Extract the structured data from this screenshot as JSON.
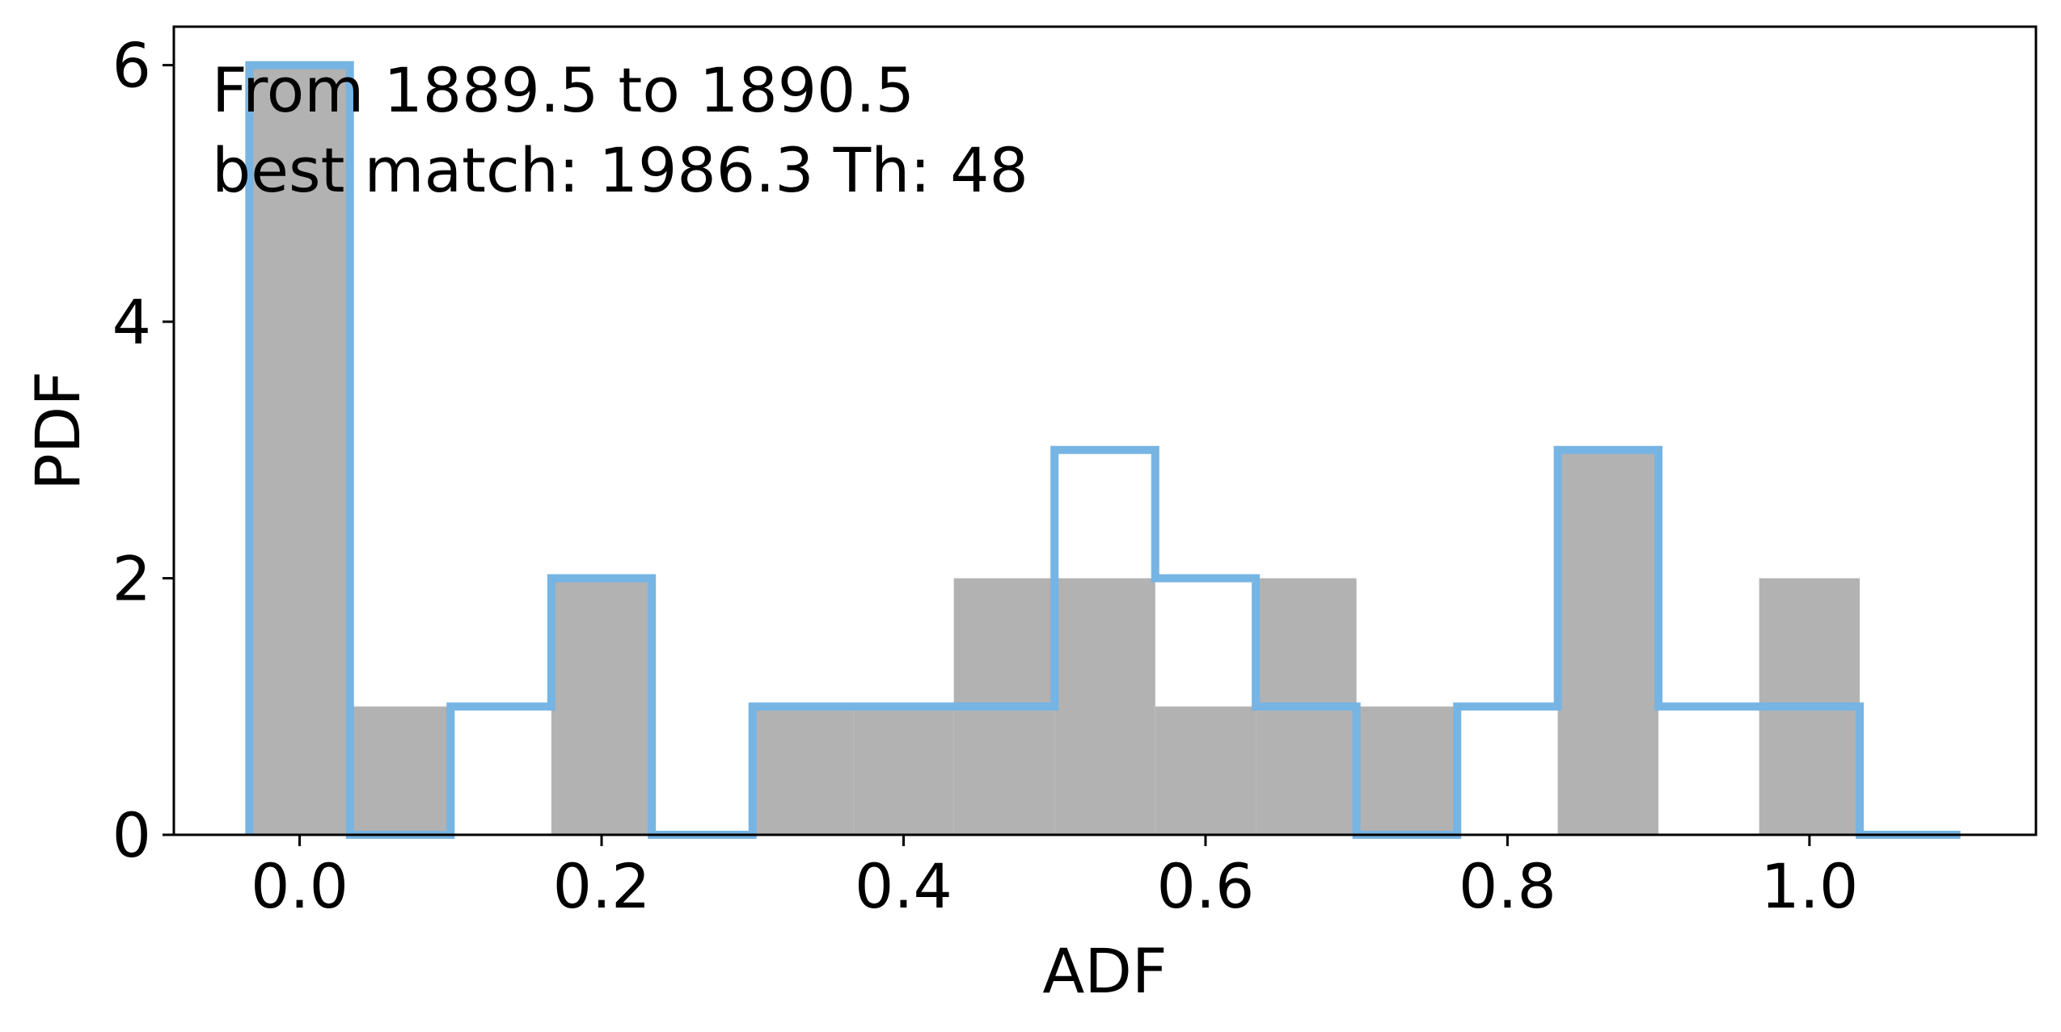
{
  "chart_data": {
    "type": "bar",
    "xlabel": "ADF",
    "ylabel": "PDF",
    "xlim": [
      -0.0833,
      1.15
    ],
    "ylim": [
      0,
      6.3
    ],
    "bin_edges": [
      -0.0333,
      0.0333,
      0.1,
      0.1667,
      0.2333,
      0.3,
      0.3667,
      0.4333,
      0.5,
      0.5667,
      0.6333,
      0.7,
      0.7667,
      0.8333,
      0.9,
      0.9667,
      1.0333,
      1.1
    ],
    "series": [
      {
        "style": "filled",
        "color": "#b2b2b2",
        "values": [
          6,
          1,
          0,
          2,
          0,
          1,
          1,
          2,
          2,
          1,
          2,
          1,
          0,
          3,
          0,
          2,
          0
        ]
      },
      {
        "style": "step",
        "color": "#76b4e4",
        "values": [
          6,
          0,
          1,
          2,
          0,
          1,
          1,
          1,
          3,
          2,
          1,
          0,
          1,
          3,
          1,
          1,
          0
        ]
      }
    ],
    "xticks": [
      {
        "value": 0.0,
        "label": "0.0"
      },
      {
        "value": 0.2,
        "label": "0.2"
      },
      {
        "value": 0.4,
        "label": "0.4"
      },
      {
        "value": 0.6,
        "label": "0.6"
      },
      {
        "value": 0.8,
        "label": "0.8"
      },
      {
        "value": 1.0,
        "label": "1.0"
      }
    ],
    "yticks": [
      {
        "value": 0,
        "label": "0"
      },
      {
        "value": 2,
        "label": "2"
      },
      {
        "value": 4,
        "label": "4"
      },
      {
        "value": 6,
        "label": "6"
      }
    ],
    "annotation": {
      "line1": "From 1889.5 to 1890.5",
      "line2": "best match: 1986.3  Th: 48"
    },
    "grid": false
  }
}
